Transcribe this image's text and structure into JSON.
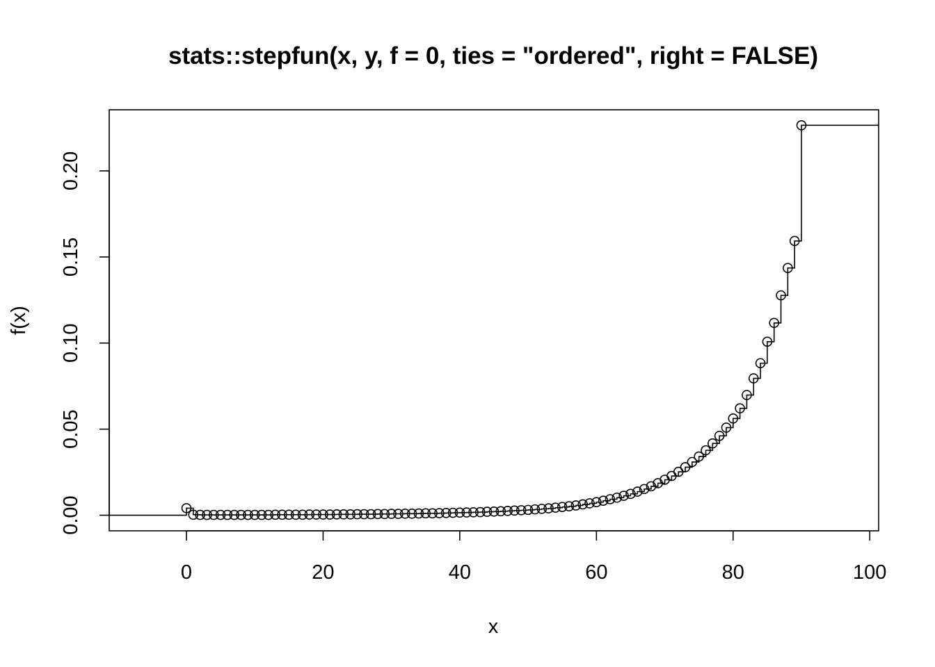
{
  "chart_data": {
    "type": "line",
    "style": "step-with-points",
    "title": "stats::stepfun(x, y, f = 0, ties = \"ordered\", right = FALSE)",
    "xlabel": "x",
    "ylabel": "f(x)",
    "xlim": [
      -11.3,
      101.3
    ],
    "ylim": [
      -0.00906,
      0.2355
    ],
    "xticks": [
      "0",
      "20",
      "40",
      "60",
      "80",
      "100"
    ],
    "yticks": [
      "0.00",
      "0.05",
      "0.10",
      "0.15",
      "0.20"
    ],
    "left_value": 0,
    "series": [
      {
        "x": [
          0,
          1,
          2,
          3,
          4,
          5,
          6,
          7,
          8,
          9,
          10,
          11,
          12,
          13,
          14,
          15,
          16,
          17,
          18,
          19,
          20,
          21,
          22,
          23,
          24,
          25,
          26,
          27,
          28,
          29,
          30,
          31,
          32,
          33,
          34,
          35,
          36,
          37,
          38,
          39,
          40,
          41,
          42,
          43,
          44,
          45,
          46,
          47,
          48,
          49,
          50,
          51,
          52,
          53,
          54,
          55,
          56,
          57,
          58,
          59,
          60,
          61,
          62,
          63,
          64,
          65,
          66,
          67,
          68,
          69,
          70,
          71,
          72,
          73,
          74,
          75,
          76,
          77,
          78,
          79,
          80,
          81,
          82,
          83,
          84,
          85,
          86,
          87,
          88,
          89,
          90
        ],
        "values": [
          0.0041,
          0.0003,
          0.0002,
          0.0002,
          0.0002,
          0.0002,
          0.0002,
          0.0002,
          0.0002,
          0.0002,
          0.0002,
          0.0002,
          0.0002,
          0.0003,
          0.0003,
          0.0003,
          0.0003,
          0.0003,
          0.0004,
          0.0004,
          0.0004,
          0.0004,
          0.0005,
          0.0005,
          0.0005,
          0.0006,
          0.0006,
          0.0006,
          0.0007,
          0.0007,
          0.0008,
          0.0008,
          0.0009,
          0.0009,
          0.001,
          0.0011,
          0.0011,
          0.0012,
          0.0013,
          0.0014,
          0.0015,
          0.0016,
          0.0017,
          0.0018,
          0.002,
          0.0021,
          0.0023,
          0.0025,
          0.0027,
          0.0029,
          0.0031,
          0.0034,
          0.0037,
          0.004,
          0.0044,
          0.0048,
          0.0052,
          0.0057,
          0.0063,
          0.0069,
          0.0076,
          0.0084,
          0.0093,
          0.0102,
          0.0113,
          0.0124,
          0.0137,
          0.0152,
          0.0168,
          0.0186,
          0.0206,
          0.0228,
          0.0252,
          0.0279,
          0.0309,
          0.0341,
          0.0377,
          0.0417,
          0.0461,
          0.0509,
          0.0562,
          0.0621,
          0.0698,
          0.0795,
          0.0883,
          0.1008,
          0.1117,
          0.1277,
          0.1436,
          0.1593,
          0.2265
        ]
      }
    ],
    "right_value": 0.2265
  }
}
